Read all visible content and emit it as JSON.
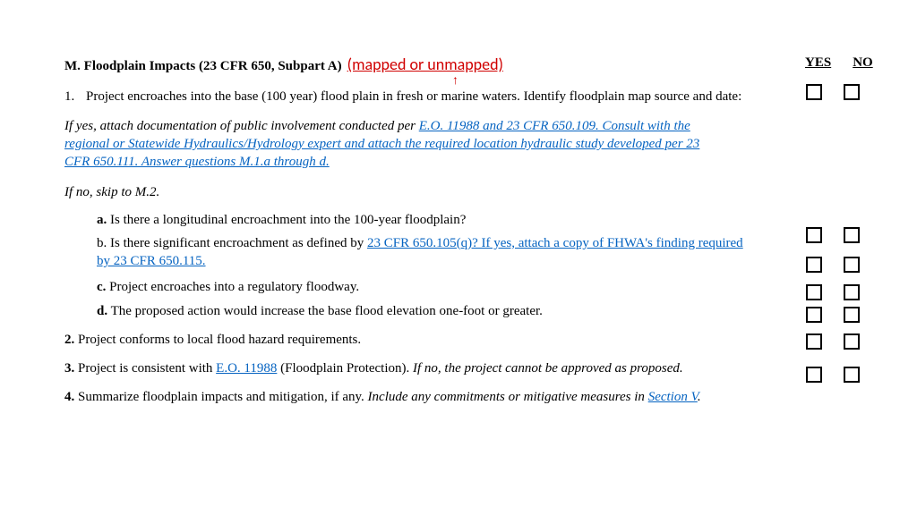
{
  "section": {
    "title": "M. Floodplain Impacts (23 CFR 650, Subpart A)",
    "annotation": "(mapped or unmapped)"
  },
  "headers": {
    "yes": "YES",
    "no": "NO"
  },
  "q1": {
    "num": "1.",
    "text": "Project encroaches into the base (100 year) flood plain in fresh or marine waters. Identify floodplain map source and date:"
  },
  "note_yes_prefix": "If yes, attach documentation of public involvement conducted per ",
  "note_yes_link": "E.O. 11988 and 23 CFR 650.109. Consult with the regional or Statewide Hydraulics/Hydrology expert and attach the required location hydraulic study developed per 23 CFR 650.111. Answer questions M.1.a through d.",
  "note_no": "If no, skip to M.2.",
  "sub": {
    "a_bold": "a.",
    "a_text": " Is there a longitudinal encroachment into the 100-year floodplain?",
    "b_prefix": "b. Is there significant encroachment as defined by ",
    "b_link": "23 CFR 650.105(q)? If yes, attach a copy of FHWA's finding required by 23 CFR 650.115.",
    "c_bold": "c.",
    "c_text": " Project encroaches into a regulatory floodway.",
    "d_bold": "d.",
    "d_text": " The proposed action would increase the base flood elevation one-foot or greater."
  },
  "q2_bold": "2.",
  "q2_text": " Project conforms to local flood hazard requirements.",
  "q3_bold": "3.",
  "q3_text1": " Project is consistent with ",
  "q3_link": "E.O. 11988",
  "q3_text2": " (Floodplain Protection). ",
  "q3_italic": "If no, the project cannot be approved as proposed.",
  "q4_bold": "4.",
  "q4_text": " Summarize floodplain impacts and mitigation, if any. ",
  "q4_italic_prefix": "Include any commitments or mitigative measures in ",
  "q4_link": "Section V",
  "q4_period": ".",
  "checkbox_positions": [
    94,
    254,
    287,
    318,
    343,
    373,
    410
  ],
  "arrow_glyph": "↑"
}
